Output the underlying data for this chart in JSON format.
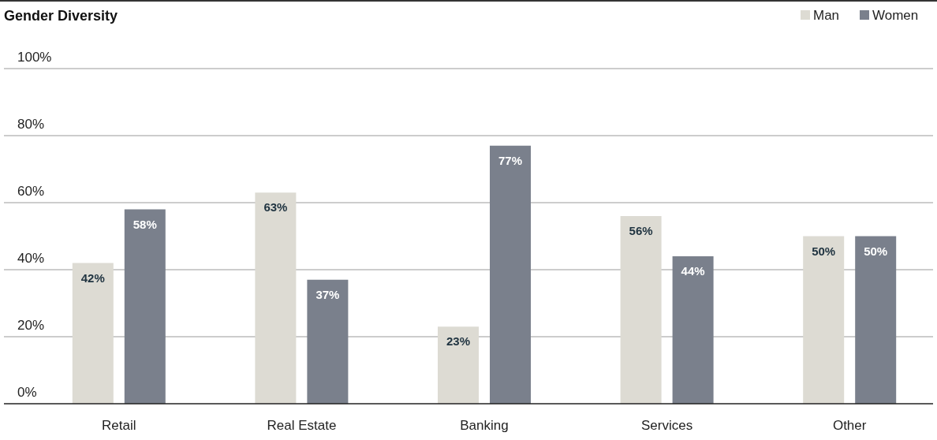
{
  "chart_data": {
    "type": "bar",
    "title": "Gender Diversity",
    "categories": [
      "Retail",
      "Real Estate",
      "Banking",
      "Services",
      "Other"
    ],
    "series": [
      {
        "name": "Man",
        "color": "#dddbd3",
        "values": [
          42,
          63,
          23,
          56,
          50
        ],
        "value_labels": [
          "42%",
          "63%",
          "23%",
          "56%",
          "50%"
        ]
      },
      {
        "name": "Women",
        "color": "#7a808c",
        "values": [
          58,
          37,
          77,
          44,
          50
        ],
        "value_labels": [
          "58%",
          "37%",
          "77%",
          "44%",
          "50%"
        ]
      }
    ],
    "ylim": [
      0,
      100
    ],
    "yticks": [
      {
        "value": 0,
        "label": "0%"
      },
      {
        "value": 20,
        "label": "20%"
      },
      {
        "value": 40,
        "label": "40%"
      },
      {
        "value": 60,
        "label": "60%"
      },
      {
        "value": 80,
        "label": "80%"
      },
      {
        "value": 100,
        "label": "100%"
      }
    ],
    "grid": "y",
    "legend": "top right"
  }
}
